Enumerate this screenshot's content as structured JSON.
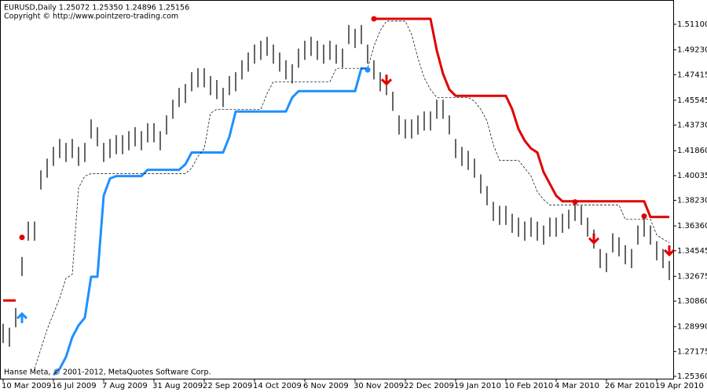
{
  "chart_data": {
    "type": "ohlc",
    "title": "EURUSD,Daily  1.25072 1.25350 1.24896 1.25156",
    "subtitle": "Copyright © http://www.pointzero-trading.com",
    "footer": "Hanse Meta, © 2001-2012, MetaQuotes Software Corp.",
    "ylim": [
      1.2519,
      1.5282
    ],
    "xlim": [
      0,
      106
    ],
    "yticks": [
      {
        "value": 1.511,
        "label": "1.51100"
      },
      {
        "value": 1.4923,
        "label": "1.49230"
      },
      {
        "value": 1.47415,
        "label": "1.47415"
      },
      {
        "value": 1.45545,
        "label": "1.45545"
      },
      {
        "value": 1.4373,
        "label": "1.43730"
      },
      {
        "value": 1.4186,
        "label": "1.41860"
      },
      {
        "value": 1.40035,
        "label": "1.40035"
      },
      {
        "value": 1.3823,
        "label": "1.38230"
      },
      {
        "value": 1.3636,
        "label": "1.36360"
      },
      {
        "value": 1.34545,
        "label": "1.34545"
      },
      {
        "value": 1.32675,
        "label": "1.32675"
      },
      {
        "value": 1.3086,
        "label": "1.30860"
      },
      {
        "value": 1.2899,
        "label": "1.28990"
      },
      {
        "value": 1.27175,
        "label": "1.27175"
      },
      {
        "value": 1.2536,
        "label": "1.25360"
      }
    ],
    "xticks": [
      {
        "value": 0,
        "label": "10 Mar 2009"
      },
      {
        "value": 8,
        "label": "16 Jul 2009"
      },
      {
        "value": 16,
        "label": "7 Aug 2009"
      },
      {
        "value": 24,
        "label": "31 Aug 2009"
      },
      {
        "value": 32,
        "label": "22 Sep 2009"
      },
      {
        "value": 40,
        "label": "14 Oct 2009"
      },
      {
        "value": 48,
        "label": "6 Nov 2009"
      },
      {
        "value": 56,
        "label": "30 Nov 2009"
      },
      {
        "value": 64,
        "label": "22 Dec 2009"
      },
      {
        "value": 72,
        "label": "19 Jan 2010"
      },
      {
        "value": 80,
        "label": "10 Feb 2010"
      },
      {
        "value": 88,
        "label": "4 Mar 2010"
      },
      {
        "value": 96,
        "label": "26 Mar 2010"
      },
      {
        "value": 104,
        "label": "19 Apr 2010"
      }
    ],
    "bar_color": "#000000",
    "high": [
      1.292,
      1.2892,
      1.3035,
      1.3409,
      1.3668,
      1.3668,
      1.4042,
      1.4128,
      1.4214,
      1.4272,
      1.4243,
      1.4272,
      1.4214,
      1.4243,
      1.4415,
      1.4358,
      1.4243,
      1.4272,
      1.43,
      1.43,
      1.4329,
      1.4358,
      1.4329,
      1.4387,
      1.4387,
      1.4329,
      1.4444,
      1.4559,
      1.4645,
      1.4674,
      1.476,
      1.4789,
      1.4789,
      1.4732,
      1.4703,
      1.4645,
      1.4732,
      1.476,
      1.4847,
      1.4904,
      1.4962,
      1.499,
      1.5019,
      1.4962,
      1.4904,
      1.4847,
      1.4818,
      1.4933,
      1.499,
      1.5019,
      1.499,
      1.4962,
      1.499,
      1.4962,
      1.4933,
      1.5105,
      1.5077,
      1.5105,
      1.4962,
      1.4847,
      1.476,
      1.4732,
      1.4617,
      1.4444,
      1.4415,
      1.4415,
      1.4444,
      1.4473,
      1.4473,
      1.4559,
      1.4559,
      1.4444,
      1.4272,
      1.4214,
      1.4185,
      1.4128,
      1.4013,
      1.3927,
      1.3812,
      1.3783,
      1.3783,
      1.3725,
      1.3697,
      1.3668,
      1.3697,
      1.3668,
      1.3639,
      1.3697,
      1.3697,
      1.3725,
      1.3754,
      1.3812,
      1.3783,
      1.3697,
      1.361,
      1.3467,
      1.3438,
      1.3582,
      1.3553,
      1.3495,
      1.3467,
      1.3639,
      1.3697,
      1.3639,
      1.3524,
      1.3467,
      1.338
    ],
    "low": [
      1.278,
      1.2752,
      1.2895,
      1.3269,
      1.3528,
      1.3528,
      1.3902,
      1.3988,
      1.4074,
      1.4132,
      1.4103,
      1.4132,
      1.4074,
      1.4103,
      1.4275,
      1.4218,
      1.4103,
      1.4132,
      1.416,
      1.416,
      1.4189,
      1.4218,
      1.4189,
      1.4247,
      1.4247,
      1.4189,
      1.4304,
      1.4419,
      1.4505,
      1.4534,
      1.462,
      1.4649,
      1.4649,
      1.4592,
      1.4563,
      1.4505,
      1.4592,
      1.462,
      1.4707,
      1.4764,
      1.4822,
      1.485,
      1.4879,
      1.4822,
      1.4764,
      1.4707,
      1.4678,
      1.4793,
      1.485,
      1.4879,
      1.485,
      1.4822,
      1.485,
      1.4822,
      1.4793,
      1.4965,
      1.4937,
      1.4965,
      1.4822,
      1.4707,
      1.462,
      1.4592,
      1.4477,
      1.4304,
      1.4275,
      1.4275,
      1.4304,
      1.4333,
      1.4333,
      1.4419,
      1.4419,
      1.4304,
      1.4132,
      1.4074,
      1.4045,
      1.3988,
      1.3873,
      1.3787,
      1.3672,
      1.3643,
      1.3643,
      1.3585,
      1.3557,
      1.3528,
      1.3557,
      1.3528,
      1.3499,
      1.3557,
      1.3557,
      1.3585,
      1.3614,
      1.3672,
      1.3643,
      1.3557,
      1.347,
      1.3327,
      1.3298,
      1.3442,
      1.3413,
      1.3355,
      1.3327,
      1.3499,
      1.3557,
      1.3499,
      1.3384,
      1.3327,
      1.324
    ],
    "series": [
      {
        "color": "#e00000",
        "values": [
          1.3091,
          1.3091,
          1.3091,
          null,
          null,
          null,
          null,
          null,
          null,
          null,
          null,
          null,
          null,
          null,
          null,
          null,
          null,
          null,
          null,
          null,
          null,
          null,
          null,
          null,
          null,
          null,
          null,
          null,
          null,
          null,
          null,
          null,
          null,
          null,
          null,
          null,
          null,
          null,
          null,
          null,
          null,
          null,
          null,
          null,
          null,
          null,
          null,
          null,
          null,
          null,
          null,
          null,
          null,
          null,
          null,
          null,
          null,
          null,
          null,
          1.515,
          1.515,
          1.515,
          1.515,
          1.515,
          1.515,
          1.515,
          1.515,
          1.515,
          1.515,
          1.492,
          1.4748,
          1.4633,
          1.4587,
          1.4587,
          1.4587,
          1.4587,
          1.4587,
          1.4587,
          1.4587,
          1.4587,
          1.4587,
          1.4489,
          1.4345,
          1.4259,
          1.4202,
          1.4173,
          1.4029,
          1.3943,
          1.3857,
          1.3816,
          1.3816,
          1.3816,
          1.3816,
          1.3816,
          1.3816,
          1.3816,
          1.3816,
          1.3816,
          1.3816,
          1.3816,
          1.3816,
          1.3816,
          1.3816,
          1.3701,
          1.3701,
          1.3701,
          1.3701
        ]
      },
      {
        "color": "#1e90ff",
        "values": [
          null,
          null,
          null,
          null,
          null,
          null,
          null,
          null,
          1.2546,
          1.2592,
          1.2678,
          1.2822,
          1.2908,
          1.2965,
          1.3264,
          1.3264,
          1.3857,
          1.3983,
          1.4,
          1.4,
          1.4,
          1.4,
          1.4,
          1.4046,
          1.4046,
          1.4046,
          1.4046,
          1.4046,
          1.4046,
          1.4087,
          1.4173,
          1.4173,
          1.4173,
          1.4173,
          1.4173,
          1.4173,
          1.4288,
          1.4472,
          1.4472,
          1.4472,
          1.4472,
          1.4472,
          1.4472,
          1.4472,
          1.4472,
          1.4472,
          1.4575,
          1.4621,
          1.4621,
          1.4621,
          1.4621,
          1.4621,
          1.4621,
          1.4621,
          1.4621,
          1.4621,
          1.4621,
          1.4788,
          1.4788,
          null,
          null,
          null,
          null,
          null,
          null,
          null,
          null,
          null,
          null,
          null,
          null,
          null,
          null,
          null,
          null,
          null,
          null,
          null,
          null,
          null,
          null,
          null,
          null,
          null,
          null,
          null,
          null,
          null,
          null,
          null,
          null,
          null,
          null,
          null,
          null,
          null,
          null,
          null,
          null,
          null,
          null,
          null,
          null,
          null,
          null,
          null,
          null,
          null
        ]
      },
      {
        "color": "#000000",
        "dashed": true,
        "values": [
          null,
          null,
          null,
          null,
          null,
          1.2592,
          1.2735,
          1.2879,
          1.2994,
          1.3109,
          1.3253,
          1.3282,
          1.3914,
          1.4,
          1.4018,
          1.4018,
          1.4018,
          1.4018,
          1.4018,
          1.4018,
          1.4018,
          1.4018,
          1.4018,
          1.4018,
          1.4018,
          1.4018,
          1.4018,
          1.4018,
          1.4018,
          1.4018,
          1.4058,
          1.4144,
          1.4202,
          1.446,
          1.4489,
          1.4489,
          1.4489,
          1.4489,
          1.4489,
          1.4489,
          1.4489,
          1.4489,
          1.4604,
          1.469,
          1.469,
          1.469,
          1.469,
          1.469,
          1.469,
          1.469,
          1.469,
          1.469,
          1.469,
          1.4788,
          1.4788,
          1.4788,
          1.4788,
          1.4788,
          1.4788,
          1.4949,
          1.5064,
          1.5133,
          1.5133,
          1.5133,
          1.5133,
          1.5035,
          1.4863,
          1.4719,
          1.4633,
          1.4575,
          1.4575,
          1.4575,
          1.4575,
          1.4575,
          1.4575,
          1.4547,
          1.4489,
          1.4403,
          1.423,
          1.4115,
          1.4115,
          1.4115,
          1.4115,
          1.4058,
          1.4,
          1.3886,
          1.3828,
          1.3788,
          1.3788,
          1.3788,
          1.3788,
          1.3788,
          1.3788,
          1.3788,
          1.3788,
          1.3788,
          1.3788,
          1.3788,
          1.3788,
          1.3684,
          1.3684,
          1.3684,
          1.3684,
          1.3684,
          1.3569,
          1.354,
          1.3512
        ]
      }
    ],
    "dots": [
      {
        "x": 3,
        "y": 1.3552,
        "color": "#e00000"
      },
      {
        "x": 58,
        "y": 1.4777,
        "color": "#1e90ff"
      },
      {
        "x": 59,
        "y": 1.515,
        "color": "#e00000"
      },
      {
        "x": 91,
        "y": 1.3811,
        "color": "#e00000"
      },
      {
        "x": 102,
        "y": 1.3707,
        "color": "#e00000"
      }
    ],
    "arrows": [
      {
        "x": 3,
        "y": 1.2994,
        "dir": "up",
        "color": "#1e90ff"
      },
      {
        "x": 61,
        "y": 1.4673,
        "dir": "down",
        "color": "#e00000"
      },
      {
        "x": 94,
        "y": 1.3512,
        "dir": "down",
        "color": "#e00000"
      },
      {
        "x": 106,
        "y": 1.3425,
        "dir": "down",
        "color": "#e00000"
      }
    ]
  }
}
